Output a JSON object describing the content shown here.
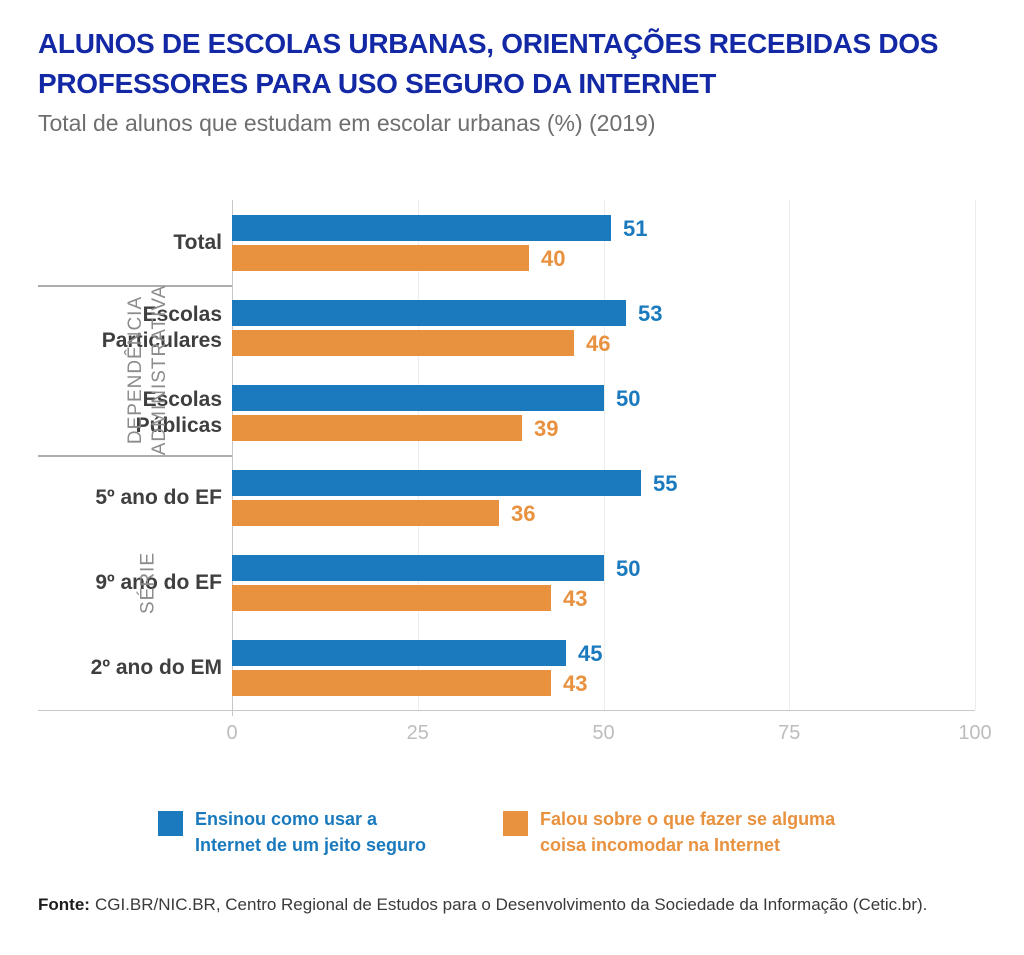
{
  "header": {
    "title": "ALUNOS DE ESCOLAS URBANAS, ORIENTAÇÕES RECEBIDAS DOS PROFESSORES PARA USO SEGURO DA INTERNET",
    "subtitle": "Total de alunos que estudam em escolar urbanas (%) (2019)"
  },
  "chart_data": {
    "type": "bar",
    "orientation": "horizontal",
    "title": "ALUNOS DE ESCOLAS URBANAS, ORIENTAÇÕES RECEBIDAS DOS PROFESSORES PARA USO SEGURO DA INTERNET",
    "subtitle": "Total de alunos que estudam em escolar urbanas (%) (2019)",
    "categories": [
      "Total",
      "Escolas Particulares",
      "Escolas Públicas",
      "5º ano do EF",
      "9º ano do EF",
      "2º ano do EM"
    ],
    "groups": [
      {
        "label": "",
        "categories": [
          "Total"
        ]
      },
      {
        "label": "DEPENDÊNCIA ADMINISTRATIVA",
        "categories": [
          "Escolas Particulares",
          "Escolas Públicas"
        ]
      },
      {
        "label": "SÉRIE",
        "categories": [
          "5º ano do EF",
          "9º ano do EF",
          "2º ano do EM"
        ]
      }
    ],
    "series": [
      {
        "name": "Ensinou como usar a Internet de um jeito seguro",
        "color": "#1A7ABD",
        "values": [
          51,
          53,
          50,
          55,
          50,
          45
        ]
      },
      {
        "name": "Falou sobre o que fazer se alguma coisa incomodar na Internet",
        "color": "#E8913E",
        "values": [
          40,
          46,
          39,
          36,
          43,
          43
        ]
      }
    ],
    "x_axis": {
      "min": 0,
      "max": 100,
      "ticks": [
        0,
        25,
        50,
        75,
        100
      ]
    },
    "grid": true,
    "legend_position": "bottom",
    "value_labels": true
  },
  "legend": {
    "items": [
      {
        "label": "Ensinou como usar a Internet de um jeito seguro",
        "color": "#1A7ABD"
      },
      {
        "label": "Falou sobre o que fazer se alguma coisa incomodar na Internet",
        "color": "#E8913E"
      }
    ]
  },
  "footer": {
    "source_label": "Fonte:",
    "source_text": "CGI.BR/NIC.BR, Centro Regional de Estudos para o Desenvolvimento da Sociedade da Informação (Cetic.br)."
  },
  "colors": {
    "title_blue": "#1328A5",
    "bar_blue": "#1A7ABD",
    "bar_orange": "#E8913E",
    "category_text": "#3F3F3F",
    "group_text": "#8C8C8C",
    "tick_text": "#BDBDBD",
    "subtitle_text": "#6F6F6F",
    "background": "#FFFFFF"
  }
}
